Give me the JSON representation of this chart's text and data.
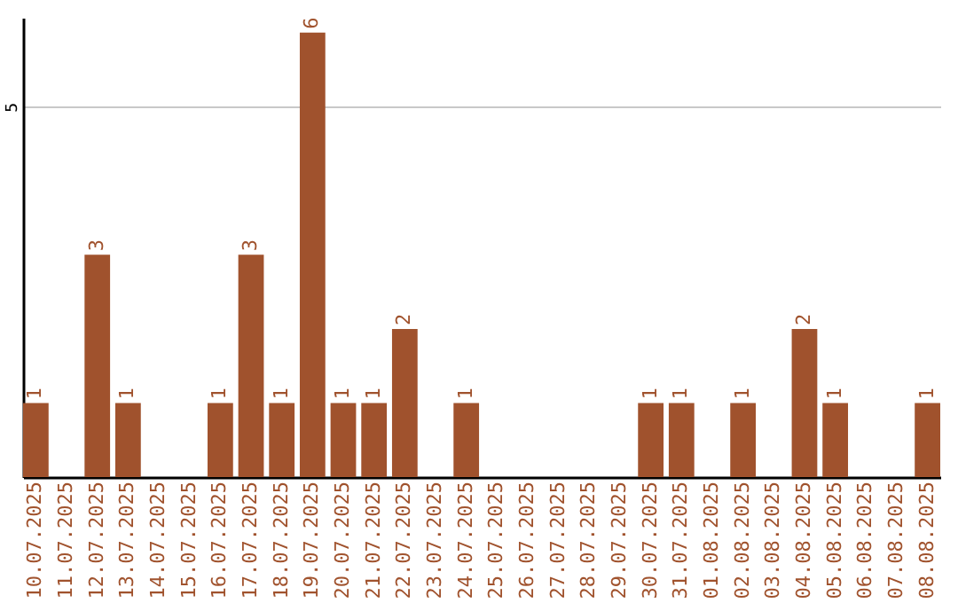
{
  "chart_data": {
    "type": "bar",
    "categories": [
      "10.07.2025",
      "11.07.2025",
      "12.07.2025",
      "13.07.2025",
      "14.07.2025",
      "15.07.2025",
      "16.07.2025",
      "17.07.2025",
      "18.07.2025",
      "19.07.2025",
      "20.07.2025",
      "21.07.2025",
      "22.07.2025",
      "23.07.2025",
      "24.07.2025",
      "25.07.2025",
      "26.07.2025",
      "27.07.2025",
      "28.07.2025",
      "29.07.2025",
      "30.07.2025",
      "31.07.2025",
      "01.08.2025",
      "02.08.2025",
      "03.08.2025",
      "04.08.2025",
      "05.08.2025",
      "06.08.2025",
      "07.08.2025",
      "08.08.2025"
    ],
    "values": [
      1,
      0,
      3,
      1,
      0,
      0,
      1,
      3,
      1,
      6,
      1,
      1,
      2,
      0,
      1,
      0,
      0,
      0,
      0,
      0,
      1,
      1,
      0,
      1,
      0,
      2,
      1,
      0,
      0,
      1
    ],
    "value_labels": [
      "1",
      null,
      "3",
      "1",
      null,
      null,
      "1",
      "3",
      "1",
      "6",
      "1",
      "1",
      "2",
      null,
      "1",
      null,
      null,
      null,
      null,
      null,
      "1",
      "1",
      null,
      "1",
      null,
      "2",
      "1",
      null,
      null,
      "1"
    ],
    "color": "#a0522d",
    "ylim": [
      0,
      6.2
    ],
    "yticks": [
      5
    ],
    "grid": "y"
  }
}
